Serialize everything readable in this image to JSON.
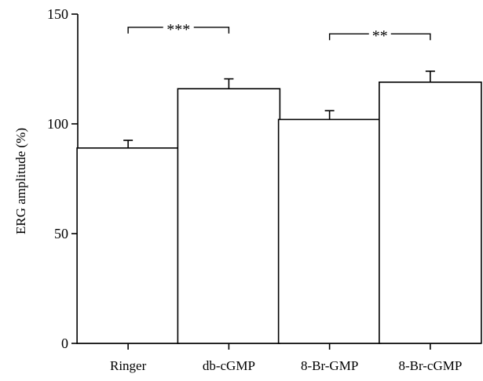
{
  "chart_data": {
    "type": "bar",
    "title": "",
    "xlabel": "",
    "ylabel": "ERG amplitude (%)",
    "ylim": [
      0,
      150
    ],
    "yticks": [
      0,
      50,
      100,
      150
    ],
    "grid": false,
    "categories": [
      "Ringer",
      "db-cGMP",
      "8-Br-GMP",
      "8-Br-cGMP"
    ],
    "values": [
      89,
      116,
      102,
      119
    ],
    "errors": [
      3.5,
      4.5,
      4.0,
      5.0
    ],
    "significance": [
      {
        "from": 0,
        "to": 1,
        "label": "***",
        "y": 144
      },
      {
        "from": 2,
        "to": 3,
        "label": "**",
        "y": 141
      }
    ]
  }
}
